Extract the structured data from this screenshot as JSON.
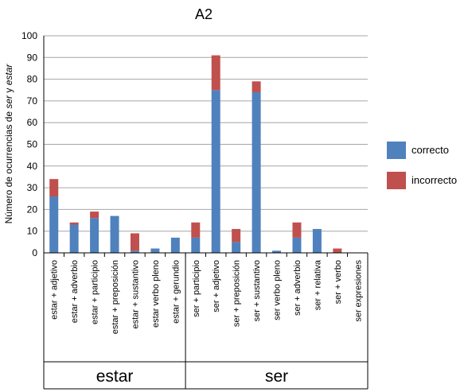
{
  "chart_data": {
    "type": "bar",
    "stacked": true,
    "title": "A2",
    "ylabel_prefix": "Número de ocurrencias de ",
    "ylabel_em1": "ser",
    "ylabel_mid": " y ",
    "ylabel_em2": "estar",
    "ylim": [
      0,
      100
    ],
    "yticks": [
      "0",
      "10",
      "20",
      "30",
      "40",
      "50",
      "60",
      "70",
      "80",
      "90",
      "100"
    ],
    "grid": true,
    "legend_position": "right",
    "categories": [
      "estar + adjetivo",
      "estar + adverbio",
      "estar + participio",
      "estar + preposición",
      "estar + sustantivo",
      "estar verbo pleno",
      "estar + gerundio",
      "ser + participio",
      "ser + adjetivo",
      "ser + preposición",
      "ser + sustantivo",
      "ser verbo pleno",
      "ser + adverbio",
      "ser + relativa",
      "ser + verbo",
      "ser expresiones"
    ],
    "series": [
      {
        "name": "correcto",
        "color": "#4F81BD",
        "values": [
          26,
          13,
          16,
          17,
          1,
          2,
          7,
          7,
          75,
          5,
          74,
          1,
          7,
          11,
          0,
          0
        ]
      },
      {
        "name": "incorrecto",
        "color": "#C0504D",
        "values": [
          8,
          1,
          3,
          0,
          8,
          0,
          0,
          7,
          16,
          6,
          5,
          0,
          7,
          0,
          2,
          0
        ]
      }
    ],
    "groups": [
      {
        "label": "estar",
        "count": 7
      },
      {
        "label": "ser",
        "count": 9
      }
    ]
  }
}
